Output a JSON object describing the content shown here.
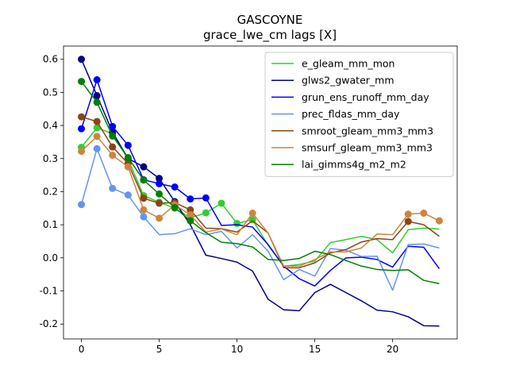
{
  "chart_data": {
    "type": "line",
    "title": "GASCOYNE",
    "subtitle": "grace_lwe_cm lags [X]",
    "xlabel": "",
    "ylabel": "",
    "xlim": [
      -1.15,
      24.15
    ],
    "ylim": [
      -0.245,
      0.64
    ],
    "xticks": [
      0,
      5,
      10,
      15,
      20
    ],
    "yticks": [
      -0.2,
      -0.1,
      0.0,
      0.1,
      0.2,
      0.3,
      0.4,
      0.5,
      0.6
    ],
    "legend_position": "upper-right",
    "grid": false,
    "x": [
      0,
      1,
      2,
      3,
      4,
      5,
      6,
      7,
      8,
      9,
      10,
      11,
      12,
      13,
      14,
      15,
      16,
      17,
      18,
      19,
      20,
      21,
      22,
      23
    ],
    "series": [
      {
        "name": "e_gleam_mm_mon",
        "color": "#32cd32",
        "values": [
          0.334,
          0.393,
          0.375,
          0.298,
          0.188,
          0.168,
          0.15,
          0.121,
          0.136,
          0.165,
          0.104,
          0.115,
          0.038,
          -0.025,
          -0.02,
          -0.01,
          0.046,
          0.055,
          0.065,
          0.055,
          0.015,
          0.085,
          0.09,
          0.087
        ],
        "markers": [
          0,
          1,
          2,
          3,
          4,
          5,
          6,
          7,
          8,
          9,
          10,
          11
        ]
      },
      {
        "name": "glws2_gwater_mm",
        "color": "#00008b",
        "values": [
          0.6,
          0.49,
          0.38,
          0.3,
          0.275,
          0.24,
          0.17,
          0.1,
          0.008,
          -0.002,
          -0.013,
          -0.04,
          -0.125,
          -0.157,
          -0.16,
          -0.105,
          -0.08,
          -0.105,
          -0.13,
          -0.158,
          -0.163,
          -0.178,
          -0.205,
          -0.206
        ],
        "markers": [
          0,
          1,
          2,
          3,
          4,
          5,
          6
        ]
      },
      {
        "name": "grun_ens_runoff_mm_day",
        "color": "#0000ff",
        "values": [
          0.39,
          0.538,
          0.397,
          0.34,
          0.236,
          0.224,
          0.214,
          0.178,
          0.181,
          0.098,
          0.1,
          0.093,
          0.04,
          -0.025,
          -0.063,
          -0.085,
          -0.038,
          0.0,
          0.002,
          -0.005,
          -0.028,
          0.035,
          0.032,
          -0.033
        ],
        "markers": [
          0,
          1,
          2,
          3,
          4,
          5,
          6,
          7,
          8
        ]
      },
      {
        "name": "prec_fldas_mm_day",
        "color": "#6495ed",
        "values": [
          0.161,
          0.33,
          0.21,
          0.19,
          0.124,
          0.07,
          0.073,
          0.088,
          0.07,
          0.08,
          0.03,
          0.07,
          0.02,
          -0.066,
          -0.035,
          -0.055,
          0.028,
          0.023,
          0.004,
          0.005,
          -0.098,
          0.04,
          0.042,
          0.03
        ],
        "markers": [
          0,
          1,
          2,
          3,
          4
        ]
      },
      {
        "name": "smroot_gleam_mm3_mm3",
        "color": "#8b4513",
        "values": [
          0.426,
          0.412,
          0.335,
          0.285,
          0.18,
          0.165,
          0.167,
          0.145,
          0.09,
          0.088,
          0.078,
          0.112,
          0.075,
          -0.03,
          -0.03,
          -0.015,
          0.015,
          0.025,
          0.048,
          0.058,
          0.055,
          0.11,
          0.1,
          0.065
        ],
        "markers": [
          0,
          1,
          2,
          3,
          4,
          5,
          6,
          7,
          21
        ]
      },
      {
        "name": "smsurf_gleam_mm3_mm3",
        "color": "#cd853f",
        "values": [
          0.322,
          0.367,
          0.31,
          0.275,
          0.145,
          0.12,
          0.16,
          0.13,
          0.078,
          0.087,
          0.07,
          0.135,
          0.075,
          -0.025,
          -0.025,
          -0.005,
          0.018,
          0.018,
          0.03,
          0.072,
          0.07,
          0.132,
          0.135,
          0.112
        ],
        "markers": [
          0,
          1,
          2,
          3,
          4,
          5,
          6,
          7,
          11,
          21,
          22,
          23
        ]
      },
      {
        "name": "lai_gimms4g_m2_m2",
        "color": "#008000",
        "values": [
          0.533,
          0.47,
          0.368,
          0.303,
          0.235,
          0.193,
          0.152,
          0.112,
          0.076,
          0.047,
          0.043,
          0.033,
          -0.005,
          -0.008,
          -0.002,
          0.02,
          0.01,
          -0.008,
          -0.025,
          -0.035,
          -0.038,
          -0.036,
          -0.068,
          -0.078
        ],
        "markers": [
          0,
          1,
          2,
          3,
          4,
          5,
          6,
          7
        ]
      }
    ]
  }
}
